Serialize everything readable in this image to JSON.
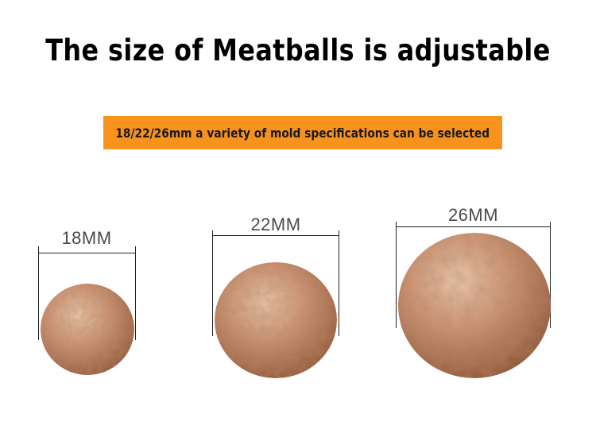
{
  "title": "The size of Meatballs is adjustable",
  "banner": {
    "text": "18/22/26mm a variety of mold specifications can be selected",
    "color": "#f7931d"
  },
  "sizes": [
    {
      "label": "18MM"
    },
    {
      "label": "22MM"
    },
    {
      "label": "26MM"
    }
  ],
  "colors": {
    "meatball_base": "#c98d6a",
    "meatball_shadow": "#9a5f3f",
    "meatball_highlight": "#e9c3a6"
  }
}
